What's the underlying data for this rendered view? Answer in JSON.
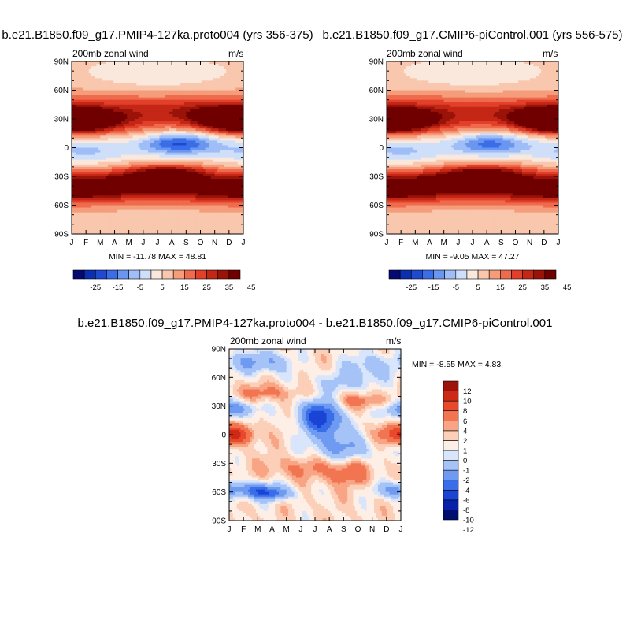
{
  "chart_data": [
    {
      "type": "heatmap",
      "title": "b.e21.B1850.f09_g17.PMIP4-127ka.proto004 (yrs 356-375)",
      "left_label": "200mb zonal wind",
      "right_label": "m/s",
      "x_ticks": [
        "J",
        "F",
        "M",
        "A",
        "M",
        "J",
        "J",
        "A",
        "S",
        "O",
        "N",
        "D",
        "J"
      ],
      "y_ticks": [
        "90N",
        "60N",
        "30N",
        "0",
        "30S",
        "60S",
        "90S"
      ],
      "ylim": [
        -90,
        90
      ],
      "stats": "MIN = -11.78 MAX =  48.81",
      "colorbar": {
        "orientation": "horizontal",
        "levels": [
          -30,
          -25,
          -20,
          -15,
          -10,
          -5,
          0,
          5,
          10,
          15,
          20,
          25,
          30,
          35,
          40,
          45
        ],
        "labels": [
          "-25",
          "-15",
          "-5",
          "5",
          "15",
          "25",
          "35",
          "45"
        ]
      },
      "features": [
        {
          "lat": 28,
          "month": 1,
          "value": 45
        },
        {
          "lat": 28,
          "month": 12,
          "value": 40
        },
        {
          "lat": -28,
          "month": 7,
          "value": 46
        },
        {
          "lat": 5,
          "month": 7.5,
          "value": -11
        }
      ]
    },
    {
      "type": "heatmap",
      "title": "b.e21.B1850.f09_g17.CMIP6-piControl.001 (yrs 556-575)",
      "left_label": "200mb zonal wind",
      "right_label": "m/s",
      "x_ticks": [
        "J",
        "F",
        "M",
        "A",
        "M",
        "J",
        "J",
        "A",
        "S",
        "O",
        "N",
        "D",
        "J"
      ],
      "y_ticks": [
        "90N",
        "60N",
        "30N",
        "0",
        "30S",
        "60S",
        "90S"
      ],
      "ylim": [
        -90,
        90
      ],
      "stats": "MIN =  -9.05 MAX =  47.27",
      "colorbar": {
        "orientation": "horizontal",
        "levels": [
          -30,
          -25,
          -20,
          -15,
          -10,
          -5,
          0,
          5,
          10,
          15,
          20,
          25,
          30,
          35,
          40,
          45
        ],
        "labels": [
          "-25",
          "-15",
          "-5",
          "5",
          "15",
          "25",
          "35",
          "45"
        ]
      },
      "features": [
        {
          "lat": 28,
          "month": 1,
          "value": 47
        },
        {
          "lat": 28,
          "month": 12,
          "value": 42
        },
        {
          "lat": -28,
          "month": 7,
          "value": 44
        },
        {
          "lat": 5,
          "month": 7.5,
          "value": -9
        }
      ]
    },
    {
      "type": "heatmap",
      "title": "b.e21.B1850.f09_g17.PMIP4-127ka.proto004 - b.e21.B1850.f09_g17.CMIP6-piControl.001",
      "left_label": "200mb zonal wind",
      "right_label": "m/s",
      "x_ticks": [
        "J",
        "F",
        "M",
        "A",
        "M",
        "J",
        "J",
        "A",
        "S",
        "O",
        "N",
        "D",
        "J"
      ],
      "y_ticks": [
        "90N",
        "60N",
        "30N",
        "0",
        "30S",
        "60S",
        "90S"
      ],
      "ylim": [
        -90,
        90
      ],
      "stats": "MIN =  -8.55 MAX =   4.83",
      "colorbar": {
        "orientation": "vertical",
        "levels": [
          -12,
          -10,
          -8,
          -6,
          -4,
          -2,
          -1,
          0,
          1,
          2,
          4,
          6,
          8,
          10,
          12
        ],
        "labels": [
          "12",
          "10",
          "8",
          "6",
          "4",
          "2",
          "1",
          "0",
          "-1",
          "-2",
          "-4",
          "-6",
          "-8",
          "-10",
          "-12"
        ]
      },
      "features": [
        {
          "lat": 22,
          "month": 6.2,
          "value": -8
        },
        {
          "lat": 0,
          "month": 1,
          "value": 4
        },
        {
          "lat": 0,
          "month": 12,
          "value": 4
        },
        {
          "lat": -58,
          "month": 1.5,
          "value": -6
        }
      ]
    }
  ]
}
